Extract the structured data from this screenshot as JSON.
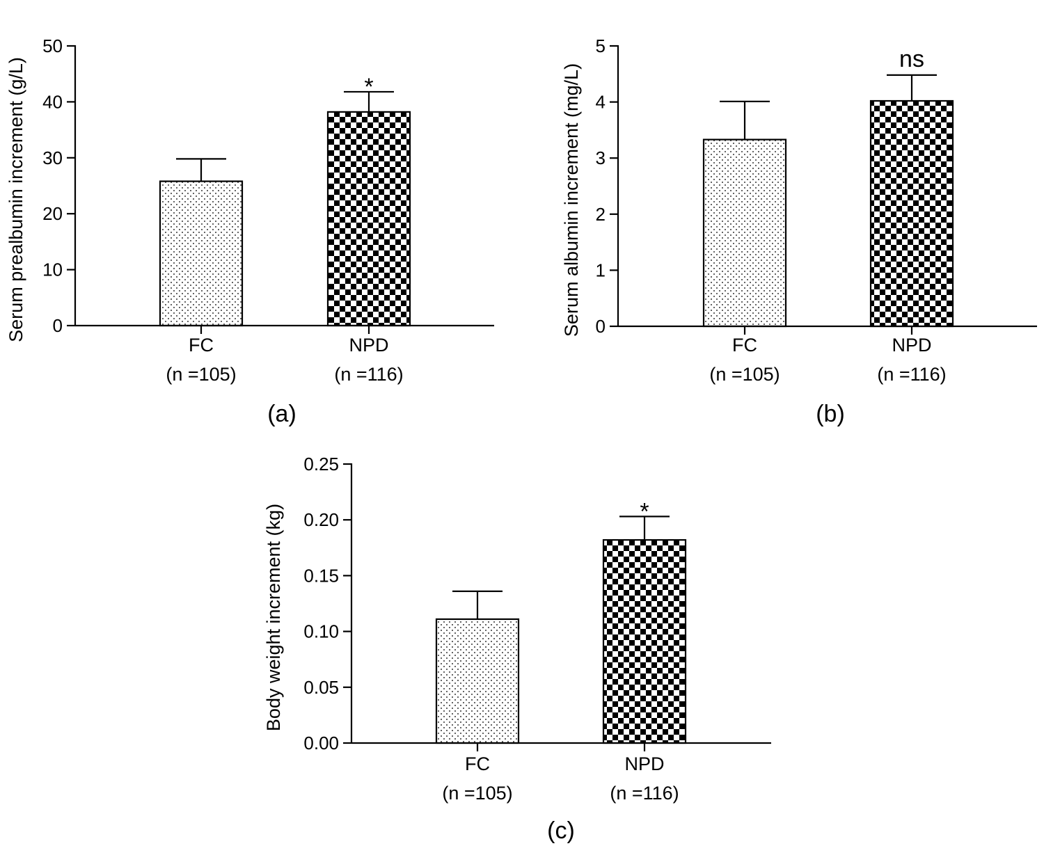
{
  "chart_data": [
    {
      "type": "bar",
      "panel_label": "(a)",
      "ylabel": "Serum prealbumin increment (g/L)",
      "ylim": [
        0,
        50
      ],
      "yticks": [
        0,
        10,
        20,
        30,
        40,
        50
      ],
      "ytick_labels": [
        "0",
        "10",
        "20",
        "30",
        "40",
        "50"
      ],
      "categories": [
        "FC",
        "NPD"
      ],
      "category_sub": [
        "(n =105)",
        "(n =116)"
      ],
      "values": [
        25.8,
        38.2
      ],
      "errors": [
        4.0,
        3.6
      ],
      "patterns": [
        "dots",
        "checker"
      ],
      "significance": [
        null,
        "*"
      ]
    },
    {
      "type": "bar",
      "panel_label": "(b)",
      "ylabel": "Serum albumin increment (mg/L)",
      "ylim": [
        0,
        5
      ],
      "yticks": [
        0,
        1,
        2,
        3,
        4,
        5
      ],
      "ytick_labels": [
        "0",
        "1",
        "2",
        "3",
        "4",
        "5"
      ],
      "categories": [
        "FC",
        "NPD"
      ],
      "category_sub": [
        "(n =105)",
        "(n =116)"
      ],
      "values": [
        3.33,
        4.02
      ],
      "errors": [
        0.68,
        0.46
      ],
      "patterns": [
        "dots",
        "checker"
      ],
      "significance": [
        null,
        "ns"
      ]
    },
    {
      "type": "bar",
      "panel_label": "(c)",
      "ylabel": "Body weight increment (kg)",
      "ylim": [
        0,
        0.25
      ],
      "yticks": [
        0,
        0.05,
        0.1,
        0.15,
        0.2,
        0.25
      ],
      "ytick_labels": [
        "0.00",
        "0.05",
        "0.10",
        "0.15",
        "0.20",
        "0.25"
      ],
      "categories": [
        "FC",
        "NPD"
      ],
      "category_sub": [
        "(n =105)",
        "(n =116)"
      ],
      "values": [
        0.111,
        0.182
      ],
      "errors": [
        0.025,
        0.021
      ],
      "patterns": [
        "dots",
        "checker"
      ],
      "significance": [
        null,
        "*"
      ]
    }
  ]
}
